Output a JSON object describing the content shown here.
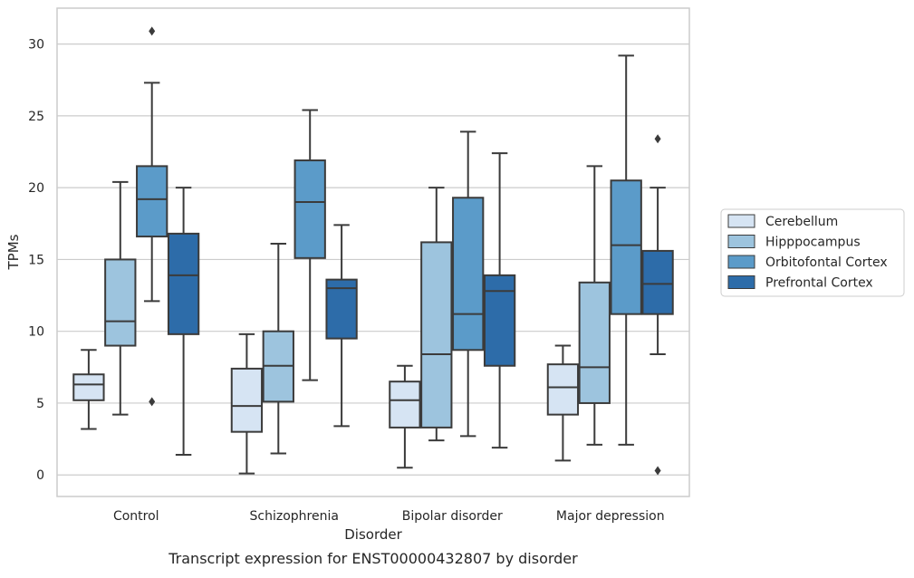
{
  "chart_data": {
    "type": "box",
    "title": "",
    "caption": "Transcript expression for ENST00000432807 by disorder",
    "xlabel": "Disorder",
    "ylabel": "TPMs",
    "ylim": [
      -1.5,
      32.5
    ],
    "yticks": [
      0,
      5,
      10,
      15,
      20,
      25,
      30
    ],
    "grid": {
      "y": true,
      "x": false
    },
    "legend_position": "outside-right",
    "categories": [
      "Control",
      "Schizophrenia",
      "Bipolar disorder",
      "Major depression"
    ],
    "series": [
      {
        "name": "Cerebellum",
        "color": "#d6e4f3",
        "boxes": [
          {
            "whisker_low": 3.2,
            "q1": 5.2,
            "median": 6.3,
            "q3": 7.0,
            "whisker_high": 8.7,
            "outliers": []
          },
          {
            "whisker_low": 0.1,
            "q1": 3.0,
            "median": 4.8,
            "q3": 7.4,
            "whisker_high": 9.8,
            "outliers": []
          },
          {
            "whisker_low": 0.5,
            "q1": 3.3,
            "median": 5.2,
            "q3": 6.5,
            "whisker_high": 7.6,
            "outliers": []
          },
          {
            "whisker_low": 1.0,
            "q1": 4.2,
            "median": 6.1,
            "q3": 7.7,
            "whisker_high": 9.0,
            "outliers": []
          }
        ]
      },
      {
        "name": "Hipppocampus",
        "color": "#9dc4de",
        "boxes": [
          {
            "whisker_low": 4.2,
            "q1": 9.0,
            "median": 10.7,
            "q3": 15.0,
            "whisker_high": 20.4,
            "outliers": []
          },
          {
            "whisker_low": 1.5,
            "q1": 5.1,
            "median": 7.6,
            "q3": 10.0,
            "whisker_high": 16.1,
            "outliers": []
          },
          {
            "whisker_low": 2.4,
            "q1": 3.3,
            "median": 8.4,
            "q3": 16.2,
            "whisker_high": 20.0,
            "outliers": []
          },
          {
            "whisker_low": 2.1,
            "q1": 5.0,
            "median": 7.5,
            "q3": 13.4,
            "whisker_high": 21.5,
            "outliers": []
          }
        ]
      },
      {
        "name": "Orbitofontal Cortex",
        "color": "#5b9bc9",
        "boxes": [
          {
            "whisker_low": 12.1,
            "q1": 16.6,
            "median": 19.2,
            "q3": 21.5,
            "whisker_high": 27.3,
            "outliers": [
              5.1,
              30.9
            ]
          },
          {
            "whisker_low": 6.6,
            "q1": 15.1,
            "median": 19.0,
            "q3": 21.9,
            "whisker_high": 25.4,
            "outliers": []
          },
          {
            "whisker_low": 2.7,
            "q1": 8.7,
            "median": 11.2,
            "q3": 19.3,
            "whisker_high": 23.9,
            "outliers": []
          },
          {
            "whisker_low": 2.1,
            "q1": 11.2,
            "median": 16.0,
            "q3": 20.5,
            "whisker_high": 29.2,
            "outliers": []
          }
        ]
      },
      {
        "name": "Prefrontal Cortex",
        "color": "#2d6ca9",
        "boxes": [
          {
            "whisker_low": 1.4,
            "q1": 9.8,
            "median": 13.9,
            "q3": 16.8,
            "whisker_high": 20.0,
            "outliers": []
          },
          {
            "whisker_low": 3.4,
            "q1": 9.5,
            "median": 13.0,
            "q3": 13.6,
            "whisker_high": 17.4,
            "outliers": []
          },
          {
            "whisker_low": 1.9,
            "q1": 7.6,
            "median": 12.8,
            "q3": 13.9,
            "whisker_high": 22.4,
            "outliers": []
          },
          {
            "whisker_low": 8.4,
            "q1": 11.2,
            "median": 13.3,
            "q3": 15.6,
            "whisker_high": 20.0,
            "outliers": [
              0.3,
              23.4
            ]
          }
        ]
      }
    ]
  }
}
